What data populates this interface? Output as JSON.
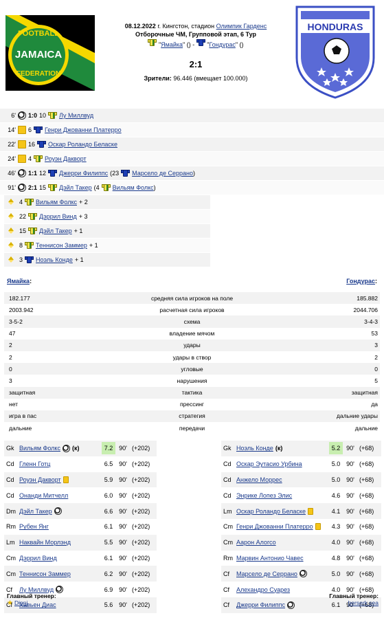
{
  "match": {
    "date": "08.12.2022",
    "city": "г. Кингстон, стадион",
    "stadium": "Олимпик Гарденс",
    "tournament": "Отборочные ЧМ, Групповой этап, 6 Тур",
    "home": "Ямайка",
    "away": "Гондурас",
    "score": "2:1",
    "attendance_label": "Зрители:",
    "attendance": "96.446 (вмещает 100.000)"
  },
  "logos": {
    "home": {
      "top": "FOOTBALL",
      "main": "JAMAICA",
      "bottom": "FEDERATION"
    },
    "away": {
      "main": "HONDURAS"
    }
  },
  "events": [
    {
      "min": "6'",
      "type": "goal",
      "score": "1:0",
      "num": "10",
      "team": "jam",
      "player": "Лу Миллвуд"
    },
    {
      "min": "14'",
      "type": "yellow",
      "num": "6",
      "team": "hon",
      "player": "Генри Джованни Платерро"
    },
    {
      "min": "22'",
      "type": "yellow",
      "num": "16",
      "team": "hon",
      "player": "Оскар Роландо Беласке"
    },
    {
      "min": "24'",
      "type": "yellow",
      "num": "4",
      "team": "jam",
      "player": "Роуэн Дакворт"
    },
    {
      "min": "46'",
      "type": "goal",
      "score": "1:1",
      "num": "12",
      "team": "hon",
      "player": "Джерри Филиппс",
      "assist_num": "23",
      "assist_team": "hon",
      "assist": "Марсело де Серрано"
    },
    {
      "min": "91'",
      "type": "goal",
      "score": "2:1",
      "num": "15",
      "team": "jam",
      "player": "Дэйл Такер",
      "assist_num": "4",
      "assist_team": "jam",
      "assist": "Вильям Фолкс"
    }
  ],
  "subs": [
    {
      "num": "4",
      "team": "jam",
      "player": "Вильям Фолкс",
      "plus": "+ 2"
    },
    {
      "num": "22",
      "team": "jam",
      "player": "Дэррил Винд",
      "plus": "+ 3"
    },
    {
      "num": "15",
      "team": "jam",
      "player": "Дэйл Такер",
      "plus": "+ 1"
    },
    {
      "num": "8",
      "team": "jam",
      "player": "Теннисон Заммер",
      "plus": "+ 1"
    },
    {
      "num": "3",
      "team": "hon",
      "player": "Ноэль Конде",
      "plus": "+ 1"
    }
  ],
  "teams": {
    "home": "Ямайка",
    "away": "Гондурас"
  },
  "stats": [
    {
      "home": "182.177",
      "label": "средняя сила игроков на поле",
      "away": "185.882"
    },
    {
      "home": "2003.942",
      "label": "расчетная сила игроков",
      "away": "2044.706"
    },
    {
      "home": "3-5-2",
      "label": "схема",
      "away": "3-4-3"
    },
    {
      "home": "47",
      "label": "владение мячом",
      "away": "53"
    },
    {
      "home": "2",
      "label": "удары",
      "away": "3"
    },
    {
      "home": "2",
      "label": "удары в створ",
      "away": "2"
    },
    {
      "home": "0",
      "label": "угловые",
      "away": "0"
    },
    {
      "home": "3",
      "label": "нарушения",
      "away": "5"
    },
    {
      "home": "защитная",
      "label": "тактика",
      "away": "защитная"
    },
    {
      "home": "нет",
      "label": "прессинг",
      "away": "да"
    },
    {
      "home": "игра в пас",
      "label": "стратегия",
      "away": "дальние удары"
    },
    {
      "home": "дальние",
      "label": "передачи",
      "away": "дальние"
    }
  ],
  "home_lineup": [
    {
      "pos": "Gk",
      "name": "Вильям Фолкс",
      "ball": true,
      "captain": "(к)",
      "rating": "7.2",
      "hi": true,
      "min": "90'",
      "delta": "(+202)"
    },
    {
      "pos": "Cd",
      "name": "Гленн Готц",
      "rating": "6.5",
      "min": "90'",
      "delta": "(+202)"
    },
    {
      "pos": "Cd",
      "name": "Роуэн Дакворт",
      "yellow": true,
      "rating": "5.9",
      "min": "90'",
      "delta": "(+202)"
    },
    {
      "pos": "Cd",
      "name": "Онанди Митчелл",
      "rating": "6.0",
      "min": "90'",
      "delta": "(+202)"
    },
    {
      "pos": "Dm",
      "name": "Дэйл Такер",
      "ball": true,
      "rating": "6.6",
      "min": "90'",
      "delta": "(+202)"
    },
    {
      "pos": "Rm",
      "name": "Рубен Янг",
      "rating": "6.1",
      "min": "90'",
      "delta": "(+202)"
    },
    {
      "pos": "Lm",
      "name": "Наквайн Морлэнд",
      "rating": "5.5",
      "min": "90'",
      "delta": "(+202)"
    },
    {
      "pos": "Cm",
      "name": "Дэррил Винд",
      "rating": "6.1",
      "min": "90'",
      "delta": "(+202)"
    },
    {
      "pos": "Cm",
      "name": "Теннисон Заммер",
      "rating": "6.2",
      "min": "90'",
      "delta": "(+202)"
    },
    {
      "pos": "Cf",
      "name": "Лу Миллвуд",
      "ball": true,
      "rating": "6.9",
      "min": "90'",
      "delta": "(+202)"
    },
    {
      "pos": "Cf",
      "name": "Хавьен Диас",
      "rating": "5.6",
      "min": "90'",
      "delta": "(+202)"
    }
  ],
  "away_lineup": [
    {
      "pos": "Gk",
      "name": "Ноэль Конде",
      "captain": "(к)",
      "rating": "5.2",
      "hi": true,
      "min": "90'",
      "delta": "(+68)"
    },
    {
      "pos": "Cd",
      "name": "Оскар Эутасио Урбина",
      "rating": "5.0",
      "min": "90'",
      "delta": "(+68)"
    },
    {
      "pos": "Cd",
      "name": "Анжело Моррес",
      "rating": "5.0",
      "min": "90'",
      "delta": "(+68)"
    },
    {
      "pos": "Cd",
      "name": "Энрике Лопез Элис",
      "rating": "4.6",
      "min": "90'",
      "delta": "(+68)"
    },
    {
      "pos": "Lm",
      "name": "Оскар Роландо Беласке",
      "yellow": true,
      "rating": "4.1",
      "min": "90'",
      "delta": "(+68)"
    },
    {
      "pos": "Cm",
      "name": "Генри Джованни Платерро",
      "yellow": true,
      "rating": "4.3",
      "min": "90'",
      "delta": "(+68)"
    },
    {
      "pos": "Cm",
      "name": "Аарон Алогсо",
      "rating": "4.0",
      "min": "90'",
      "delta": "(+68)"
    },
    {
      "pos": "Rm",
      "name": "Марвин Антонио Чавес",
      "rating": "4.8",
      "min": "90'",
      "delta": "(+68)"
    },
    {
      "pos": "Cf",
      "name": "Марсело де Серрано",
      "ball": true,
      "rating": "5.0",
      "min": "90'",
      "delta": "(+68)"
    },
    {
      "pos": "Cf",
      "name": "Алехандро Суарез",
      "rating": "4.0",
      "min": "90'",
      "delta": "(+68)"
    },
    {
      "pos": "Cf",
      "name": "Джерри Филиппс",
      "ball": true,
      "rating": "6.1",
      "min": "90'",
      "delta": "(+68)"
    }
  ],
  "coaches": {
    "label": "Главный тренер:",
    "home": "Dinni",
    "away": "berserk sea"
  }
}
